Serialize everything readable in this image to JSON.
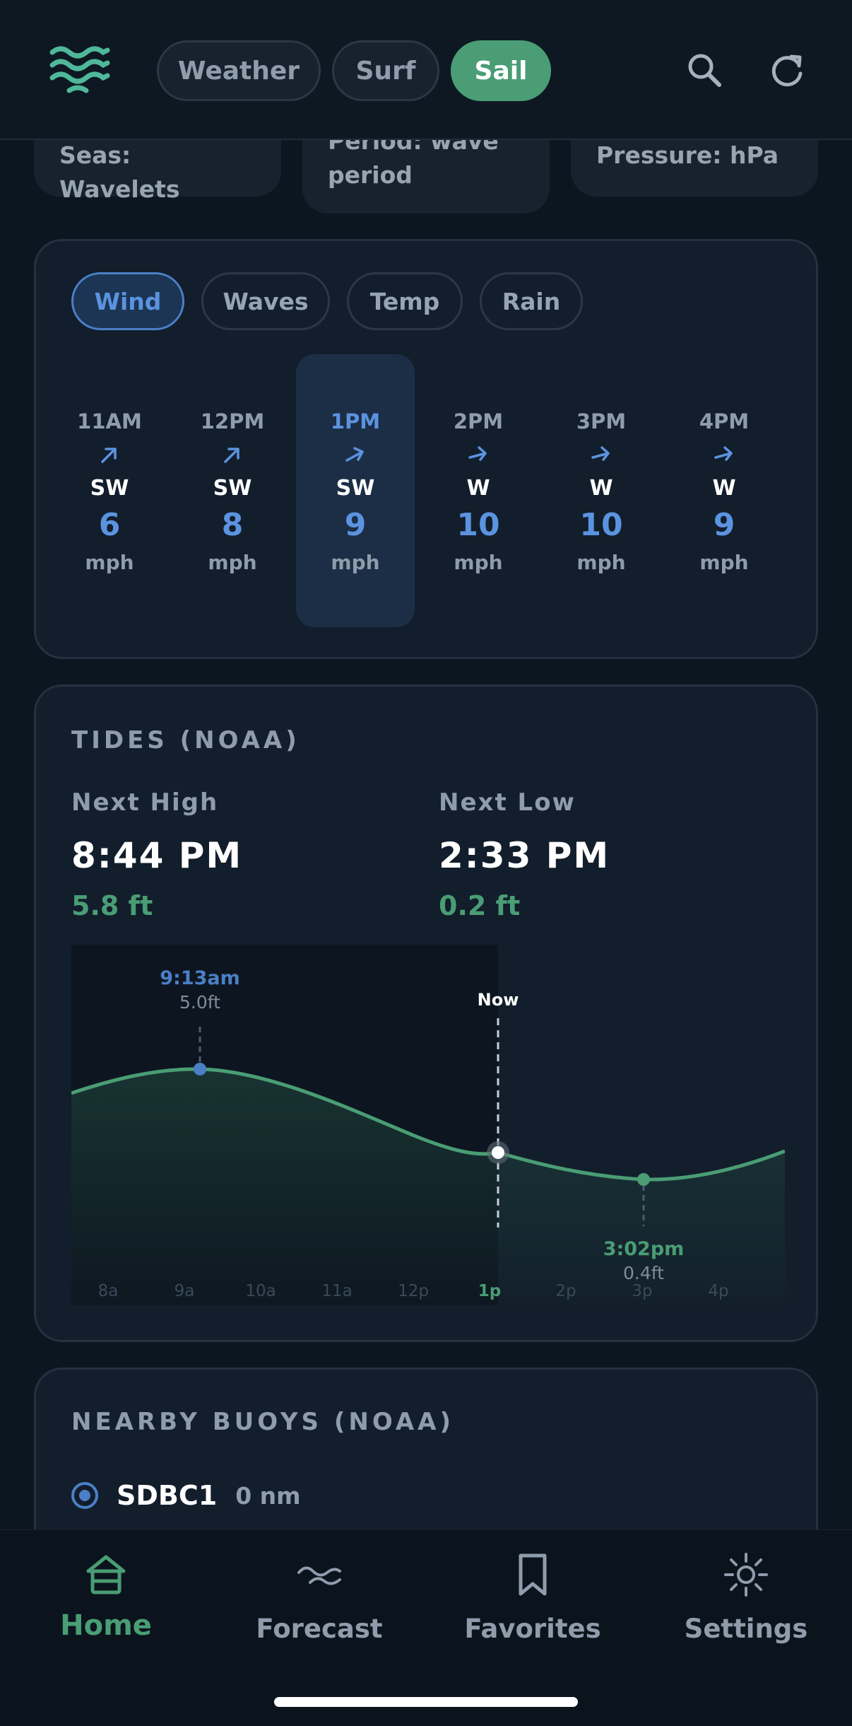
{
  "header": {
    "tabs": [
      {
        "label": "Weather",
        "active": false
      },
      {
        "label": "Surf",
        "active": false
      },
      {
        "label": "Sail",
        "active": true
      }
    ],
    "icons": {
      "logo": "waves-logo-icon",
      "search": "search-icon",
      "refresh": "refresh-icon"
    }
  },
  "conditions": {
    "seas": "Seas: Wavelets",
    "period_line1": "Period: wave",
    "period_line2": "period",
    "pressure": "Pressure: hPa"
  },
  "hourly": {
    "chips": [
      {
        "label": "Wind",
        "active": true
      },
      {
        "label": "Waves",
        "active": false
      },
      {
        "label": "Temp",
        "active": false
      },
      {
        "label": "Rain",
        "active": false
      }
    ],
    "hours": [
      {
        "time": "11AM",
        "dir": "SW",
        "speed": "6",
        "unit": "mph",
        "active": false
      },
      {
        "time": "12PM",
        "dir": "SW",
        "speed": "8",
        "unit": "mph",
        "active": false
      },
      {
        "time": "1PM",
        "dir": "SW",
        "speed": "9",
        "unit": "mph",
        "active": true
      },
      {
        "time": "2PM",
        "dir": "W",
        "speed": "10",
        "unit": "mph",
        "active": false
      },
      {
        "time": "3PM",
        "dir": "W",
        "speed": "10",
        "unit": "mph",
        "active": false
      },
      {
        "time": "4PM",
        "dir": "W",
        "speed": "9",
        "unit": "mph",
        "active": false
      }
    ]
  },
  "tides": {
    "title": "TIDES (NOAA)",
    "next_high_label": "Next High",
    "next_high_time": "8:44 PM",
    "next_high_height": "5.8 ft",
    "next_low_label": "Next Low",
    "next_low_time": "2:33 PM",
    "next_low_height": "0.2 ft",
    "chart": {
      "now_label": "Now",
      "high_time": "9:13am",
      "high_height": "5.0ft",
      "low_time": "3:02pm",
      "low_height": "0.4ft",
      "axis": [
        "8a",
        "9a",
        "10a",
        "11a",
        "12p",
        "1p",
        "2p",
        "3p",
        "4p"
      ],
      "current_tick": "1p"
    }
  },
  "buoys": {
    "title": "NEARBY BUOYS (NOAA)",
    "items": [
      {
        "name": "SDBC1",
        "distance": "0 nm",
        "selected": true
      }
    ]
  },
  "bottom_nav": {
    "items": [
      {
        "label": "Home",
        "icon": "home-icon",
        "active": true
      },
      {
        "label": "Forecast",
        "icon": "wave-icon",
        "active": false
      },
      {
        "label": "Favorites",
        "icon": "bookmark-icon",
        "active": false
      },
      {
        "label": "Settings",
        "icon": "gear-icon",
        "active": false
      }
    ]
  },
  "colors": {
    "accent_green": "#4a9d74",
    "accent_blue": "#5b93e0",
    "background": "#0c1620",
    "card": "#121e2b"
  }
}
